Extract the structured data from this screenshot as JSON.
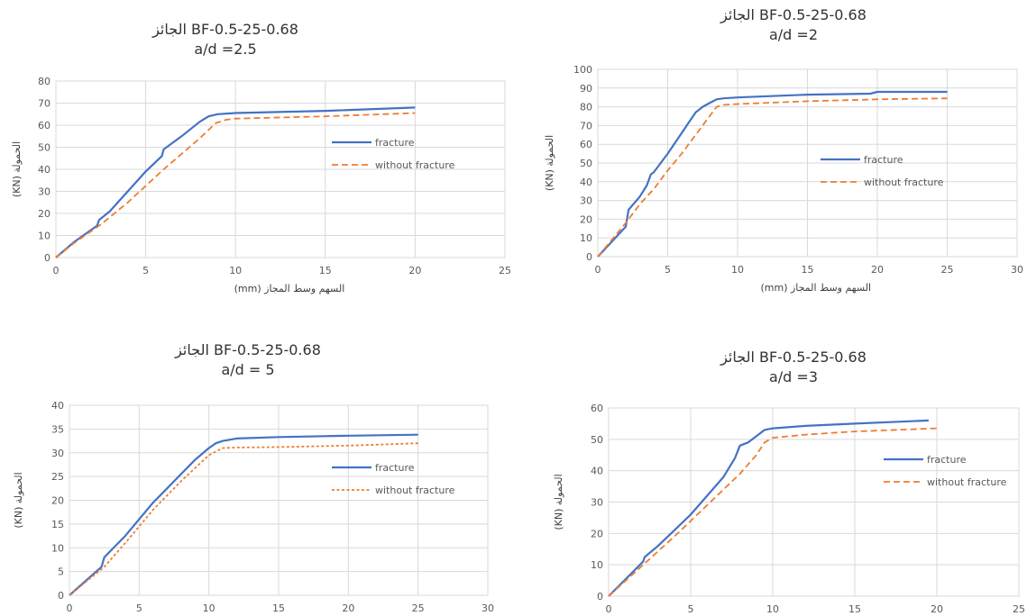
{
  "colors": {
    "fracture": "#4472C4",
    "without": "#ED7D31",
    "grid": "#D9D9D9",
    "axis": "#BFBFBF",
    "text": "#595959"
  },
  "chart_data": [
    {
      "type": "line",
      "title": "الجائز BF-0.5-25-0.68",
      "subtitle": "a/d =2.5",
      "xlabel": "السهم وسط المجاز (mm)",
      "ylabel": "الحمولة (KN)",
      "xlim": [
        0,
        25
      ],
      "ylim": [
        0,
        80
      ],
      "xticks": [
        0,
        5,
        10,
        15,
        20,
        25
      ],
      "yticks": [
        0,
        10,
        20,
        30,
        40,
        50,
        60,
        70,
        80
      ],
      "legend": "right",
      "grid": true,
      "series": [
        {
          "name": "fracture",
          "style": "solid",
          "x": [
            0,
            1,
            2.3,
            2.4,
            3,
            4,
            5,
            5.9,
            6,
            7,
            8,
            8.5,
            9,
            10,
            15,
            20
          ],
          "y": [
            0,
            7,
            14.5,
            17,
            21,
            30,
            39,
            46,
            49,
            55,
            61.5,
            64,
            65,
            65.5,
            66.5,
            68
          ]
        },
        {
          "name": "without fracture",
          "style": "dash",
          "x": [
            0,
            1,
            2.5,
            4,
            6,
            8,
            8.9,
            9.5,
            10,
            15,
            20
          ],
          "y": [
            0,
            6.5,
            15,
            25,
            40,
            54,
            61,
            62.5,
            63,
            64,
            65.5
          ]
        }
      ]
    },
    {
      "type": "line",
      "title": "الجائز BF-0.5-25-0.68",
      "subtitle": "a/d =2",
      "xlabel": "السهم وسط المجاز (mm)",
      "ylabel": "الحمولة (KN)",
      "xlim": [
        0,
        30
      ],
      "ylim": [
        0,
        100
      ],
      "xticks": [
        0,
        5,
        10,
        15,
        20,
        25,
        30
      ],
      "yticks": [
        0,
        10,
        20,
        30,
        40,
        50,
        60,
        70,
        80,
        90,
        100
      ],
      "legend": "right",
      "grid": true,
      "series": [
        {
          "name": "fracture",
          "style": "solid",
          "x": [
            0,
            1,
            2,
            2.2,
            3,
            3.5,
            3.8,
            4,
            5,
            6,
            7,
            7.5,
            8,
            8.5,
            9,
            10,
            15,
            19.5,
            20,
            25
          ],
          "y": [
            0,
            8,
            16,
            25,
            32,
            38,
            44,
            45,
            55,
            66,
            77,
            80,
            82,
            84,
            84.5,
            85,
            86.5,
            87,
            88,
            88
          ]
        },
        {
          "name": "without fracture",
          "style": "dash",
          "x": [
            0,
            1,
            2,
            3,
            4,
            5,
            6,
            7,
            8,
            8.5,
            9,
            10,
            15,
            20,
            25
          ],
          "y": [
            0,
            9,
            18,
            28,
            36,
            46,
            55,
            65,
            75,
            80,
            81,
            81.5,
            83,
            84,
            84.5
          ]
        }
      ]
    },
    {
      "type": "line",
      "title": "الجائز BF-0.5-25-0.68",
      "subtitle": "a/d = 5",
      "xlabel": "السهم وسط المجاز (mm)",
      "ylabel": "الحمولة (KN)",
      "xlim": [
        0,
        30
      ],
      "ylim": [
        0,
        40
      ],
      "xticks": [
        0,
        5,
        10,
        15,
        20,
        25,
        30
      ],
      "yticks": [
        0,
        5,
        10,
        15,
        20,
        25,
        30,
        35,
        40
      ],
      "legend": "right",
      "grid": true,
      "series": [
        {
          "name": "fracture",
          "style": "solid",
          "x": [
            0,
            2.3,
            2.5,
            3.5,
            4,
            5,
            6,
            7,
            8,
            9,
            10,
            10.5,
            11,
            12,
            15,
            20,
            25
          ],
          "y": [
            0,
            6,
            8,
            11,
            12.5,
            16,
            19.5,
            22.5,
            25.5,
            28.5,
            31,
            32,
            32.5,
            33,
            33.3,
            33.6,
            33.8
          ]
        },
        {
          "name": "without fracture",
          "style": "dot",
          "x": [
            0,
            2.5,
            4,
            6,
            8,
            10,
            11,
            12,
            15,
            20,
            25
          ],
          "y": [
            0,
            6,
            11,
            18,
            24,
            29.5,
            31,
            31.1,
            31.2,
            31.5,
            32
          ]
        }
      ]
    },
    {
      "type": "line",
      "title": "الجائز BF-0.5-25-0.68",
      "subtitle": "a/d =3",
      "xlabel": "السهم وسط المجاز (mm)",
      "ylabel": "الحمولة (KN)",
      "xlim": [
        0,
        25
      ],
      "ylim": [
        0,
        60
      ],
      "xticks": [
        0,
        5,
        10,
        15,
        20,
        25
      ],
      "yticks": [
        0,
        10,
        20,
        30,
        40,
        50,
        60
      ],
      "legend": "right",
      "grid": true,
      "series": [
        {
          "name": "fracture",
          "style": "solid",
          "x": [
            0,
            2.1,
            2.2,
            3,
            4,
            5,
            6,
            7,
            7.7,
            8,
            8.5,
            9,
            9.5,
            10,
            12,
            15,
            19.5
          ],
          "y": [
            0,
            11,
            12.5,
            16,
            21,
            26,
            32,
            38,
            44,
            48,
            49,
            51,
            53,
            53.5,
            54.3,
            55,
            56
          ]
        },
        {
          "name": "without fracture",
          "style": "dash",
          "x": [
            0,
            2,
            4,
            6,
            8,
            9,
            9.5,
            10,
            12,
            15,
            20
          ],
          "y": [
            0,
            9.5,
            19,
            29,
            39,
            45,
            49,
            50.5,
            51.5,
            52.5,
            53.5
          ]
        }
      ]
    }
  ]
}
